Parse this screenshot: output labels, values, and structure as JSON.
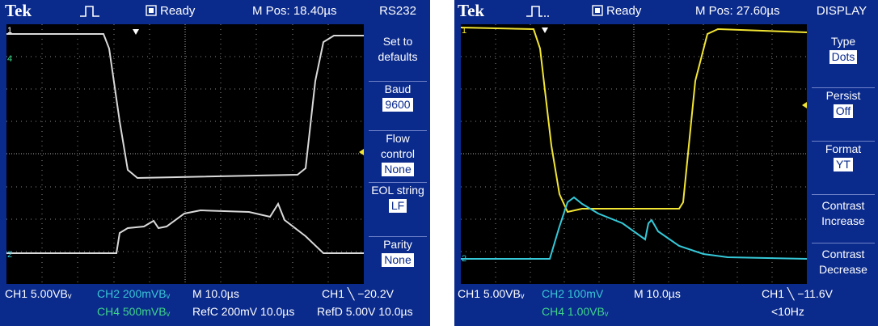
{
  "left": {
    "brand": "Tek",
    "status": "Ready",
    "mpos": "M Pos: 18.40µs",
    "menu_title": "RS232",
    "menu_items": [
      {
        "label": "Set to defaults",
        "value": ""
      },
      {
        "label": "Baud",
        "value": "9600"
      },
      {
        "label": "Flow control",
        "value": "None"
      },
      {
        "label": "EOL string",
        "value": "LF"
      },
      {
        "label": "Parity",
        "value": "None"
      }
    ],
    "ch1_scale": "CH1  5.00VBᵥ",
    "ch2_scale": "CH2  200mVBᵥ",
    "ch4_scale": "CH4  500mVBᵥ",
    "timebase": "M 10.0µs",
    "refc": "RefC 200mV 10.0µs",
    "refd": "RefD 5.00V 10.0µs",
    "trigger": "CH1 ╲ −20.2V",
    "markers": {
      "ch1": "1",
      "ch4": "4",
      "ch2": "2"
    }
  },
  "right": {
    "brand": "Tek",
    "status": "Ready",
    "mpos": "M Pos: 27.60µs",
    "menu_title": "DISPLAY",
    "menu_items": [
      {
        "label": "Type",
        "value": "Dots"
      },
      {
        "label": "Persist",
        "value": "Off"
      },
      {
        "label": "Format",
        "value": "YT"
      },
      {
        "label": "Contrast Increase",
        "value": ""
      },
      {
        "label": "Contrast Decrease",
        "value": ""
      }
    ],
    "ch1_scale": "CH1  5.00VBᵥ",
    "ch2_scale": "CH2  100mV",
    "ch4_scale": "CH4  1.00VBᵥ",
    "timebase": "M 10.0µs",
    "trigger": "CH1 ╲ −11.6V",
    "freq": "<10Hz",
    "markers": {
      "ch1": "1",
      "ch2": "2"
    }
  },
  "colors": {
    "frame": "#0a2a8c",
    "grid": "#000000",
    "trace_gray": "#d9d9d9",
    "trace_yellow": "#f2e533",
    "trace_cyan": "#35c9d9"
  },
  "icons": [
    "trigger-pulse-icon",
    "status-square-icon",
    "trigger-position-arrow-icon",
    "trigger-level-arrow-icon"
  ]
}
